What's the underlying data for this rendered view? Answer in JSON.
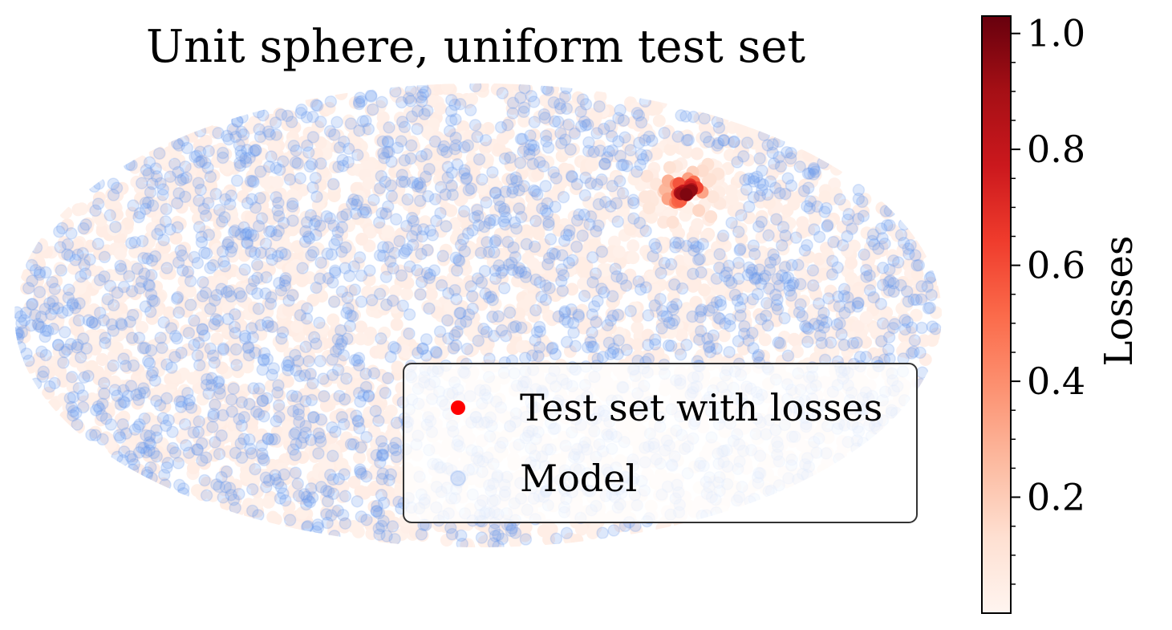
{
  "chart_data": {
    "type": "scatter",
    "title": "Unit sphere, uniform test set",
    "projection": "mollweide",
    "series": [
      {
        "name": "Test set with losses",
        "color_scale": "Reds",
        "color_min": 0.0,
        "color_max": 1.03,
        "points_note_count": 3000,
        "hotspot": {
          "lon_deg": 95,
          "lat_deg": 40,
          "peak_loss": 1.0
        }
      },
      {
        "name": "Model",
        "color": "#6495ED",
        "opacity": 0.22,
        "points_note_count": 2300
      }
    ],
    "colorbar": {
      "label": "Losses",
      "range": [
        0.0,
        1.03
      ],
      "ticks": [
        "0.2",
        "0.4",
        "0.6",
        "0.8",
        "1.0"
      ]
    },
    "legend": {
      "placement": "lower-right"
    }
  },
  "colors": {
    "model": "#6495ED",
    "loss_low": "#FFF5F0",
    "loss_high": "#67000D",
    "legend_marker": "#FF0000"
  }
}
